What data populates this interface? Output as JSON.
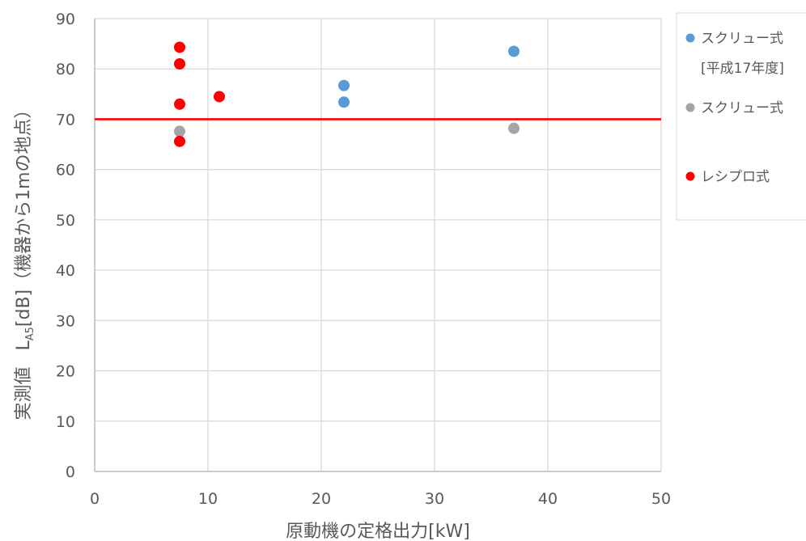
{
  "chart_data": {
    "type": "scatter",
    "xlabel": "原動機の定格出力[kW]",
    "ylabel_prefix": "実測値",
    "ylabel_L": "L",
    "ylabel_sub": "A5",
    "ylabel_rest": "[dB]（機器から1mの地点）",
    "xlim": [
      0,
      50
    ],
    "ylim": [
      0,
      90
    ],
    "x_ticks": [
      0,
      10,
      20,
      30,
      40,
      50
    ],
    "y_ticks": [
      0,
      10,
      20,
      30,
      40,
      50,
      60,
      70,
      80,
      90
    ],
    "grid": true,
    "legend_position": "right",
    "series": [
      {
        "name": "スクリュー式",
        "name_line2": "[平成17年度]",
        "color": "#5b9bd5",
        "points": [
          {
            "x": 22,
            "y": 76.7
          },
          {
            "x": 22,
            "y": 73.4
          },
          {
            "x": 37,
            "y": 83.5
          }
        ]
      },
      {
        "name": "スクリュー式",
        "color": "#a5a5a5",
        "points": [
          {
            "x": 7.5,
            "y": 67.6
          },
          {
            "x": 37,
            "y": 68.2
          }
        ]
      },
      {
        "name": "レシプロ式",
        "color": "#ff0000",
        "points": [
          {
            "x": 7.5,
            "y": 84.3
          },
          {
            "x": 7.5,
            "y": 81.0
          },
          {
            "x": 7.5,
            "y": 73.0
          },
          {
            "x": 7.5,
            "y": 65.6
          },
          {
            "x": 11,
            "y": 74.5
          }
        ]
      }
    ],
    "reference_line": {
      "y": 70,
      "color": "#ff0000"
    }
  }
}
